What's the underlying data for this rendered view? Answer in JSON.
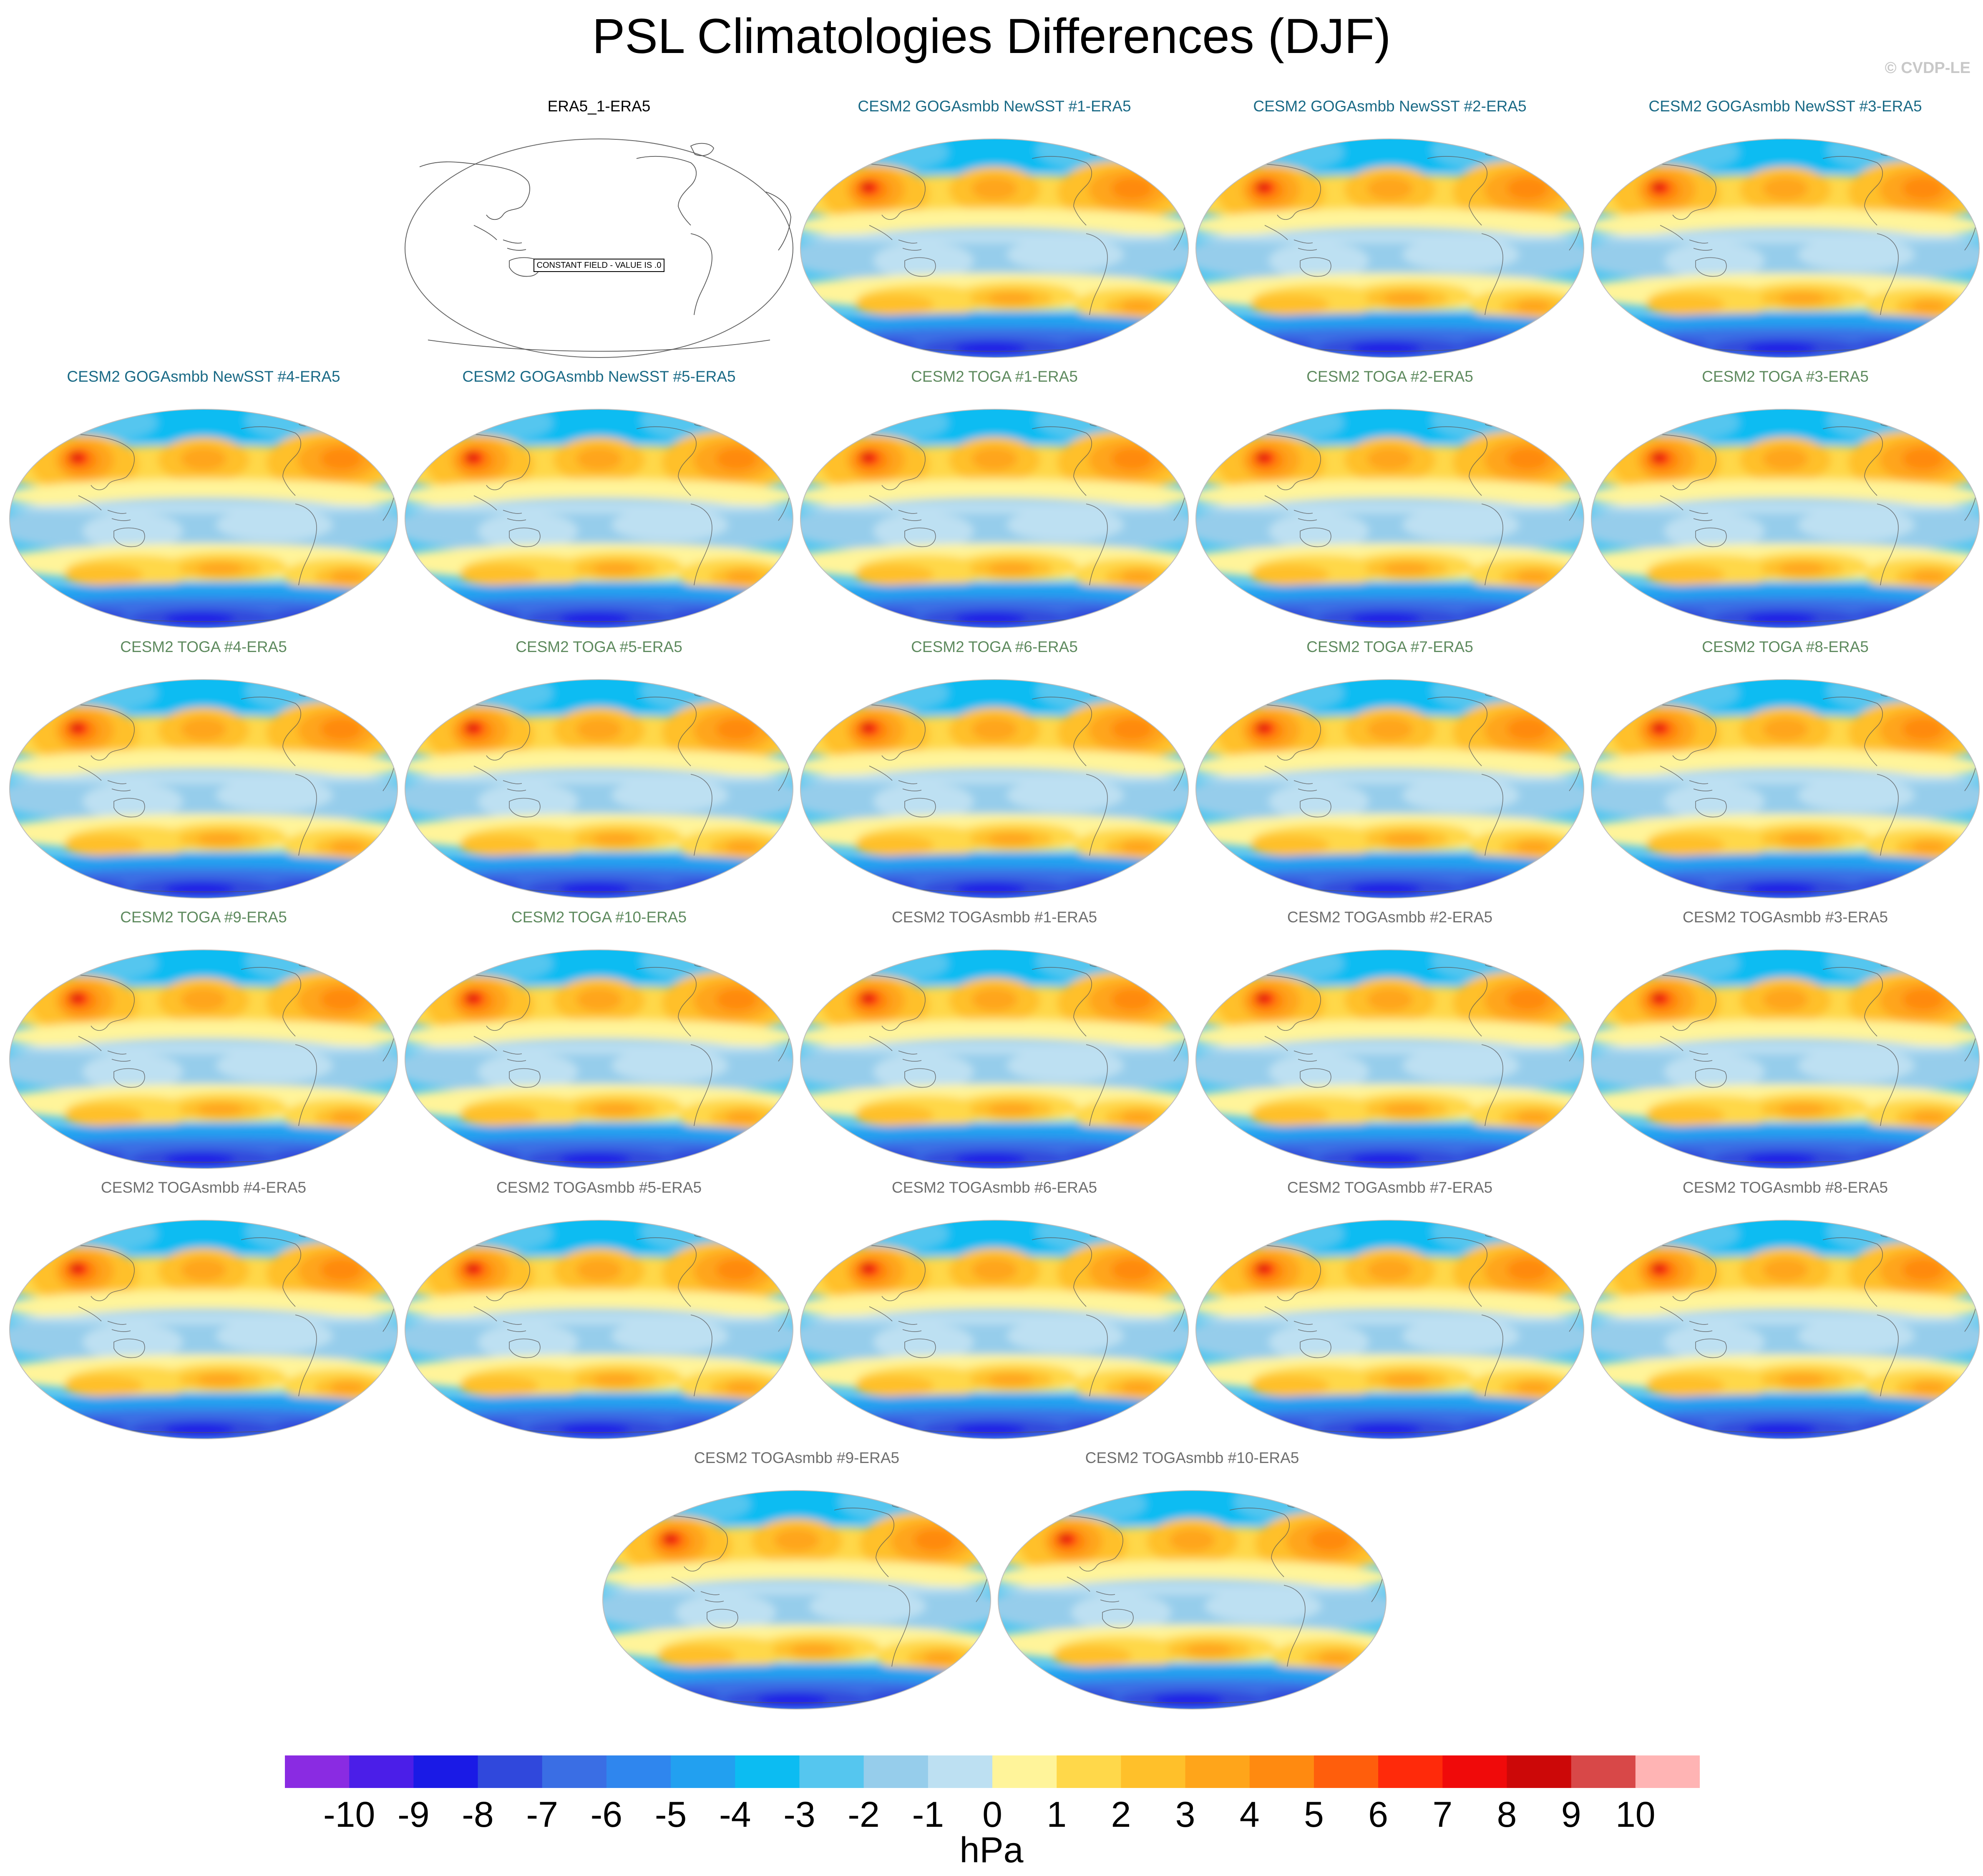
{
  "title": "PSL Climatologies Differences (DJF)",
  "watermark": "© CVDP-LE",
  "colorbar": {
    "units": "hPa",
    "labels": [
      "-10",
      "-9",
      "-8",
      "-7",
      "-6",
      "-5",
      "-4",
      "-3",
      "-2",
      "-1",
      "0",
      "1",
      "2",
      "3",
      "4",
      "5",
      "6",
      "7",
      "8",
      "9",
      "10"
    ],
    "colors": [
      "#8a2be2",
      "#4b1ee8",
      "#1a1ae6",
      "#3048dc",
      "#3a6ee4",
      "#2f86ee",
      "#22a0f0",
      "#0cbcf2",
      "#55c6ef",
      "#96cdeb",
      "#bde0f2",
      "#fff49a",
      "#ffd84a",
      "#ffc02a",
      "#ffa51a",
      "#ff8a10",
      "#ff5e0c",
      "#ff2a0a",
      "#f00a0a",
      "#cc0808",
      "#d84848",
      "#ffb4b4"
    ]
  },
  "map_legend_colors": {
    "constant_panel_outline": "#000000",
    "coastline": "#555555"
  },
  "panels": [
    {
      "title": "ERA5_1-ERA5",
      "title_color": "#000000",
      "constant": true,
      "constant_text": "CONSTANT FIELD - VALUE IS .0"
    },
    {
      "title": "CESM2 GOGAsmbb NewSST #1-ERA5",
      "title_color": "#1a6a86"
    },
    {
      "title": "CESM2 GOGAsmbb NewSST #2-ERA5",
      "title_color": "#1a6a86"
    },
    {
      "title": "CESM2 GOGAsmbb NewSST #3-ERA5",
      "title_color": "#1a6a86"
    },
    {
      "title": "CESM2 GOGAsmbb NewSST #4-ERA5",
      "title_color": "#1a6a86"
    },
    {
      "title": "CESM2 GOGAsmbb NewSST #5-ERA5",
      "title_color": "#1a6a86"
    },
    {
      "title": "CESM2 TOGA #1-ERA5",
      "title_color": "#5e8a5e"
    },
    {
      "title": "CESM2 TOGA #2-ERA5",
      "title_color": "#5e8a5e"
    },
    {
      "title": "CESM2 TOGA #3-ERA5",
      "title_color": "#5e8a5e"
    },
    {
      "title": "CESM2 TOGA #4-ERA5",
      "title_color": "#5e8a5e"
    },
    {
      "title": "CESM2 TOGA #5-ERA5",
      "title_color": "#5e8a5e"
    },
    {
      "title": "CESM2 TOGA #6-ERA5",
      "title_color": "#5e8a5e"
    },
    {
      "title": "CESM2 TOGA #7-ERA5",
      "title_color": "#5e8a5e"
    },
    {
      "title": "CESM2 TOGA #8-ERA5",
      "title_color": "#5e8a5e"
    },
    {
      "title": "CESM2 TOGA #9-ERA5",
      "title_color": "#5e8a5e"
    },
    {
      "title": "CESM2 TOGA #10-ERA5",
      "title_color": "#5e8a5e"
    },
    {
      "title": "CESM2 TOGAsmbb #1-ERA5",
      "title_color": "#6e6e6e"
    },
    {
      "title": "CESM2 TOGAsmbb #2-ERA5",
      "title_color": "#6e6e6e"
    },
    {
      "title": "CESM2 TOGAsmbb #3-ERA5",
      "title_color": "#6e6e6e"
    },
    {
      "title": "CESM2 TOGAsmbb #4-ERA5",
      "title_color": "#6e6e6e"
    },
    {
      "title": "CESM2 TOGAsmbb #5-ERA5",
      "title_color": "#6e6e6e"
    },
    {
      "title": "CESM2 TOGAsmbb #6-ERA5",
      "title_color": "#6e6e6e"
    },
    {
      "title": "CESM2 TOGAsmbb #7-ERA5",
      "title_color": "#6e6e6e"
    },
    {
      "title": "CESM2 TOGAsmbb #8-ERA5",
      "title_color": "#6e6e6e"
    },
    {
      "title": "CESM2 TOGAsmbb #9-ERA5",
      "title_color": "#6e6e6e"
    },
    {
      "title": "CESM2 TOGAsmbb #10-ERA5",
      "title_color": "#6e6e6e"
    }
  ]
}
